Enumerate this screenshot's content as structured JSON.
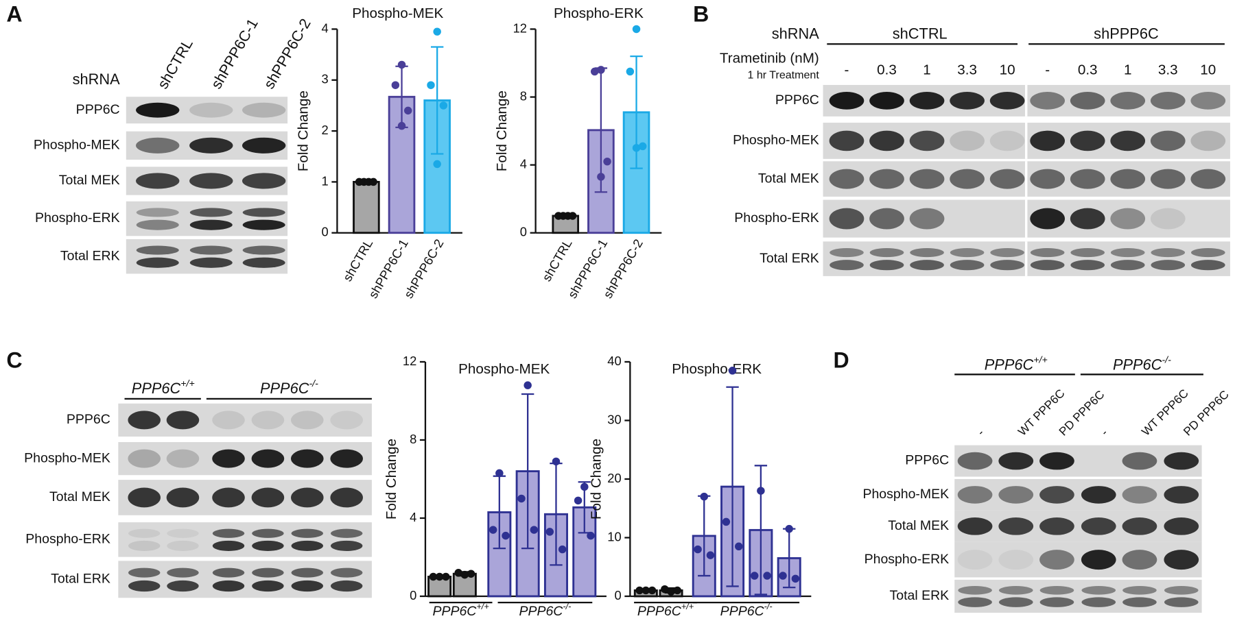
{
  "panel_labels": [
    "A",
    "B",
    "C",
    "D"
  ],
  "blot_A": {
    "header": "shRNA",
    "columns": [
      "shCTRL",
      "shPPP6C-1",
      "shPPP6C-2"
    ],
    "rows": [
      "PPP6C",
      "Phospho-MEK",
      "Total MEK",
      "Phospho-ERK",
      "Total ERK"
    ]
  },
  "blot_B": {
    "header": "shRNA",
    "groups": [
      "shCTRL",
      "shPPP6C"
    ],
    "treatment": "Trametinib (nM)",
    "treatment_note": "1 hr Treatment",
    "doses": [
      "-",
      "0.3",
      "1",
      "3.3",
      "10",
      "-",
      "0.3",
      "1",
      "3.3",
      "10"
    ],
    "rows": [
      "PPP6C",
      "Phospho-MEK",
      "Total MEK",
      "Phospho-ERK",
      "Total ERK"
    ]
  },
  "blot_C": {
    "groups": [
      {
        "gene": "PPP6C",
        "genotype": "+/+"
      },
      {
        "gene": "PPP6C",
        "genotype": "-/-"
      }
    ],
    "rows": [
      "PPP6C",
      "Phospho-MEK",
      "Total MEK",
      "Phospho-ERK",
      "Total ERK"
    ]
  },
  "blot_D": {
    "groups": [
      {
        "gene": "PPP6C",
        "genotype": "+/+"
      },
      {
        "gene": "PPP6C",
        "genotype": "-/-"
      }
    ],
    "columns": [
      "-",
      "WT PPP6C",
      "PD PPP6C",
      "-",
      "WT PPP6C",
      "PD PPP6C"
    ],
    "rows": [
      "PPP6C",
      "Phospho-MEK",
      "Total MEK",
      "Phospho-ERK",
      "Total ERK"
    ]
  },
  "chart_data": [
    {
      "type": "bar",
      "title": "Phospho-MEK",
      "y_label": "Fold Change",
      "categories": [
        "shCTRL",
        "shPPP6C-1",
        "shPPP6C-2"
      ],
      "values": [
        1,
        2.67,
        2.6
      ],
      "errors": [
        0,
        0.6,
        1.05
      ],
      "points": [
        [
          1,
          1,
          1,
          1
        ],
        [
          3.3,
          2.9,
          2.4,
          2.1
        ],
        [
          3.95,
          2.9,
          2.5,
          1.35
        ]
      ],
      "colors": [
        "#a6a6a6",
        "#aaa5d9",
        "#5cc8f2"
      ],
      "edge_colors": [
        "#111111",
        "#4a3f98",
        "#1aa9e6"
      ],
      "ylim": [
        0,
        4
      ],
      "yticks": [
        0,
        1,
        2,
        3,
        4
      ]
    },
    {
      "type": "bar",
      "title": "Phospho-ERK",
      "y_label": "Fold Change",
      "categories": [
        "shCTRL",
        "shPPP6C-1",
        "shPPP6C-2"
      ],
      "values": [
        1,
        6.05,
        7.1
      ],
      "errors": [
        0,
        3.65,
        3.3
      ],
      "points": [
        [
          1,
          1,
          1,
          1
        ],
        [
          9.6,
          9.5,
          4.2,
          3.3
        ],
        [
          12,
          9.5,
          5.1,
          5.0
        ]
      ],
      "colors": [
        "#a6a6a6",
        "#aaa5d9",
        "#5cc8f2"
      ],
      "edge_colors": [
        "#111111",
        "#4a3f98",
        "#1aa9e6"
      ],
      "ylim": [
        0,
        12
      ],
      "yticks": [
        0,
        4,
        8,
        12
      ]
    },
    {
      "type": "bar",
      "title": "Phospho-MEK",
      "y_label": "Fold Change",
      "categories": [
        null,
        null,
        null,
        null,
        null,
        null
      ],
      "groups": [
        {
          "gene": "PPP6C",
          "genotype": "+/+"
        },
        {
          "gene": "PPP6C",
          "genotype": "-/-"
        }
      ],
      "values": [
        1,
        1.15,
        4.3,
        6.4,
        4.2,
        4.55
      ],
      "errors": [
        0.05,
        0.1,
        1.85,
        3.95,
        2.6,
        1.3
      ],
      "points": [
        [
          1,
          1,
          1
        ],
        [
          1.2,
          1.1,
          1.15
        ],
        [
          6.3,
          3.4,
          3.1
        ],
        [
          10.8,
          5.0,
          3.4
        ],
        [
          6.9,
          3.3,
          2.4
        ],
        [
          5.6,
          4.9,
          3.1
        ]
      ],
      "colors": [
        "#a6a6a6",
        "#a6a6a6",
        "#aaa5d9",
        "#aaa5d9",
        "#aaa5d9",
        "#aaa5d9"
      ],
      "edge_colors": [
        "#111111",
        "#111111",
        "#2e3192",
        "#2e3192",
        "#2e3192",
        "#2e3192"
      ],
      "ylim": [
        0,
        12
      ],
      "yticks": [
        0,
        4,
        8,
        12
      ]
    },
    {
      "type": "bar",
      "title": "Phospho-ERK",
      "y_label": "Fold Change",
      "categories": [
        null,
        null,
        null,
        null,
        null,
        null
      ],
      "groups": [
        {
          "gene": "PPP6C",
          "genotype": "+/+"
        },
        {
          "gene": "PPP6C",
          "genotype": "-/-"
        }
      ],
      "values": [
        1,
        1,
        10.3,
        18.7,
        11.3,
        6.5
      ],
      "errors": [
        0.1,
        0.4,
        6.8,
        17,
        11,
        5
      ],
      "points": [
        [
          1,
          1,
          1
        ],
        [
          1.2,
          0.8,
          1.0
        ],
        [
          17,
          8,
          7
        ],
        [
          38.5,
          12.7,
          8.5
        ],
        [
          18,
          3.5,
          3.5
        ],
        [
          11.5,
          3.5,
          3
        ]
      ],
      "colors": [
        "#a6a6a6",
        "#a6a6a6",
        "#aaa5d9",
        "#aaa5d9",
        "#aaa5d9",
        "#aaa5d9"
      ],
      "edge_colors": [
        "#111111",
        "#111111",
        "#2e3192",
        "#2e3192",
        "#2e3192",
        "#2e3192"
      ],
      "ylim": [
        0,
        40
      ],
      "yticks": [
        0,
        10,
        20,
        30,
        40
      ]
    }
  ]
}
